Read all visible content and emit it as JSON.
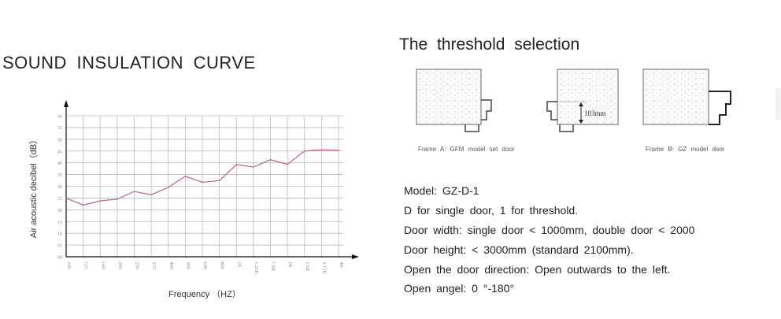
{
  "left": {
    "title": "SOUND INSULATION CURVE"
  },
  "chart_data": {
    "type": "line",
    "title": "SOUND INSULATION CURVE",
    "xlabel": "Frequency （HZ）",
    "ylabel": "Air acoustic decibel（dB）",
    "categories": [
      "100",
      "125",
      "160",
      "200",
      "250",
      "315",
      "400",
      "500",
      "630",
      "800",
      "1K",
      "1.25K",
      "1.6K",
      "2K",
      "2.5K",
      "3.15K",
      "4K"
    ],
    "yticks": [
      "00",
      "05",
      "10",
      "15",
      "20",
      "25",
      "30",
      "35",
      "40",
      "45",
      "50",
      "55",
      "60"
    ],
    "ylim": [
      0,
      60
    ],
    "grid": true,
    "series": [
      {
        "values": [
          25,
          22,
          23.8,
          24.5,
          27.8,
          26.4,
          29.5,
          34.3,
          31.7,
          32.4,
          39.2,
          38.2,
          41.3,
          39.3,
          45,
          45.5,
          45.3
        ],
        "color": "#c0607a"
      }
    ]
  },
  "right": {
    "title": "The threshold selection",
    "dimension": "103mm",
    "caption_a": "Frame A: GFM model set door",
    "caption_b": "Frame B: GZ model door",
    "lines": [
      "Model: GZ-D-1",
      "D for single door, 1 for threshold.",
      "Door width: single door < 1000mm, double door < 2000",
      "Door height: < 3000mm (standard 2100mm).",
      "Open the door direction: Open outwards to the left.",
      "Open angel: 0 °-180°"
    ]
  }
}
